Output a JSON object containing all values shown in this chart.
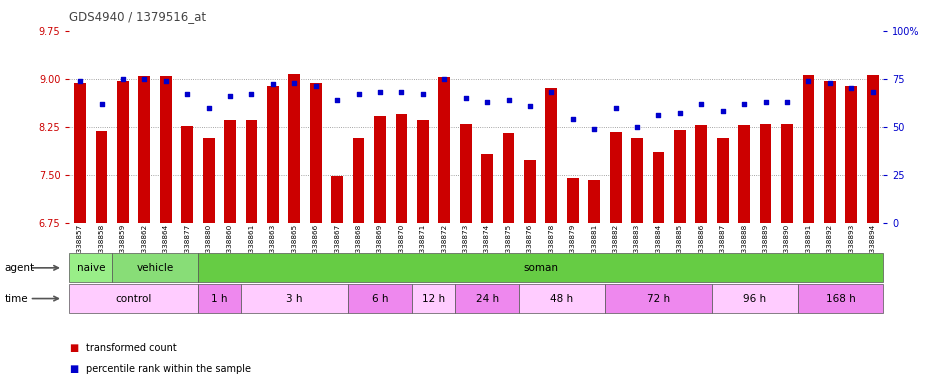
{
  "title": "GDS4940 / 1379516_at",
  "samples": [
    "GSM338857",
    "GSM338858",
    "GSM338859",
    "GSM338862",
    "GSM338864",
    "GSM338877",
    "GSM338880",
    "GSM338860",
    "GSM338861",
    "GSM338863",
    "GSM338865",
    "GSM338866",
    "GSM338867",
    "GSM338868",
    "GSM338869",
    "GSM338870",
    "GSM338871",
    "GSM338872",
    "GSM338873",
    "GSM338874",
    "GSM338875",
    "GSM338876",
    "GSM338878",
    "GSM338879",
    "GSM338881",
    "GSM338882",
    "GSM338883",
    "GSM338884",
    "GSM338885",
    "GSM338886",
    "GSM338887",
    "GSM338888",
    "GSM338889",
    "GSM338890",
    "GSM338891",
    "GSM338892",
    "GSM338893",
    "GSM338894"
  ],
  "bar_values": [
    8.94,
    8.18,
    8.97,
    9.04,
    9.04,
    8.26,
    8.08,
    8.35,
    8.35,
    8.88,
    9.07,
    8.93,
    7.48,
    8.08,
    8.42,
    8.45,
    8.35,
    9.03,
    8.3,
    7.83,
    8.15,
    7.73,
    8.85,
    7.45,
    7.42,
    8.17,
    8.07,
    7.85,
    8.2,
    8.27,
    8.07,
    8.28,
    8.3,
    8.3,
    9.06,
    8.97,
    8.88,
    9.06
  ],
  "percentile_values": [
    74,
    62,
    75,
    75,
    74,
    67,
    60,
    66,
    67,
    72,
    73,
    71,
    64,
    67,
    68,
    68,
    67,
    75,
    65,
    63,
    64,
    61,
    68,
    54,
    49,
    60,
    50,
    56,
    57,
    62,
    58,
    62,
    63,
    63,
    74,
    73,
    70,
    68
  ],
  "ymin": 6.75,
  "ymax": 9.75,
  "yticks": [
    6.75,
    7.5,
    8.25,
    9.0,
    9.75
  ],
  "bar_color": "#cc0000",
  "dot_color": "#0000cc",
  "bar_bottom": 6.75,
  "agent_groups": [
    {
      "label": "naive",
      "start": 0,
      "end": 2,
      "color": "#99ee88"
    },
    {
      "label": "vehicle",
      "start": 2,
      "end": 6,
      "color": "#88dd77"
    },
    {
      "label": "soman",
      "start": 6,
      "end": 38,
      "color": "#66cc44"
    }
  ],
  "time_groups": [
    {
      "label": "control",
      "start": 0,
      "end": 6,
      "color": "#ffccff"
    },
    {
      "label": "1 h",
      "start": 6,
      "end": 8,
      "color": "#ee88ee"
    },
    {
      "label": "3 h",
      "start": 8,
      "end": 13,
      "color": "#ffccff"
    },
    {
      "label": "6 h",
      "start": 13,
      "end": 16,
      "color": "#ee88ee"
    },
    {
      "label": "12 h",
      "start": 16,
      "end": 18,
      "color": "#ffccff"
    },
    {
      "label": "24 h",
      "start": 18,
      "end": 21,
      "color": "#ee88ee"
    },
    {
      "label": "48 h",
      "start": 21,
      "end": 25,
      "color": "#ffccff"
    },
    {
      "label": "72 h",
      "start": 25,
      "end": 30,
      "color": "#ee88ee"
    },
    {
      "label": "96 h",
      "start": 30,
      "end": 34,
      "color": "#ffccff"
    },
    {
      "label": "168 h",
      "start": 34,
      "end": 38,
      "color": "#ee88ee"
    }
  ],
  "right_yticks": [
    0,
    25,
    50,
    75,
    100
  ],
  "right_ytick_labels": [
    "0",
    "25",
    "50",
    "75",
    "100%"
  ],
  "legend_items": [
    {
      "label": "transformed count",
      "color": "#cc0000"
    },
    {
      "label": "percentile rank within the sample",
      "color": "#0000cc"
    }
  ],
  "bg_color": "#ffffff",
  "title_color": "#444444",
  "axis_color_left": "#cc0000",
  "axis_color_right": "#0000cc"
}
